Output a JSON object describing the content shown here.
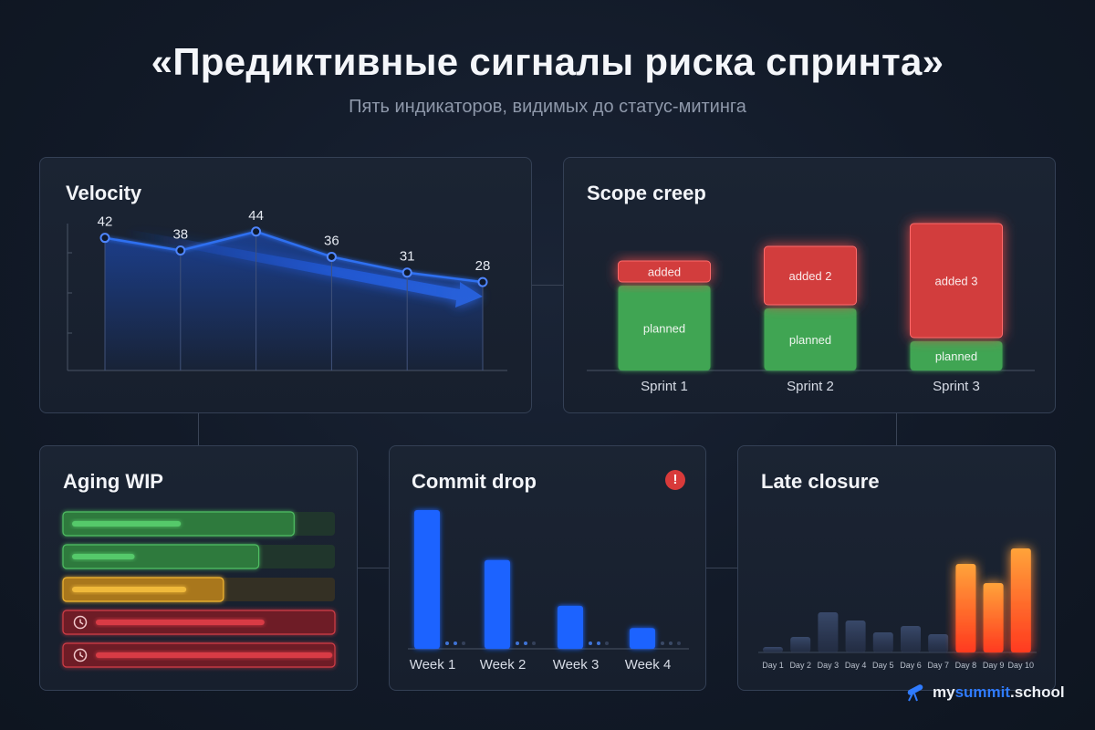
{
  "header": {
    "title": "«Предиктивные сигналы риска спринта»",
    "subtitle": "Пять индикаторов, видимых до статус-митинга"
  },
  "brand": {
    "part1": "my",
    "part2": "summit",
    "part3": ".school"
  },
  "colors": {
    "blue": "#1f6bff",
    "green": "#3fa552",
    "red": "#d23c3c",
    "amber": "#e0a92a",
    "orange": "#ff6a2a",
    "muted_blue": "#3a4a68"
  },
  "chart_data": [
    {
      "id": "velocity",
      "type": "line",
      "title": "Velocity",
      "values": [
        42,
        38,
        44,
        36,
        31,
        28
      ],
      "trend": "down",
      "series_color": "#2f6ff0"
    },
    {
      "id": "scope",
      "type": "bar",
      "title": "Scope creep",
      "stacked": true,
      "categories": [
        "Sprint 1",
        "Sprint 2",
        "Sprint 3"
      ],
      "series": [
        {
          "name": "planned",
          "labels": [
            "planned",
            "planned",
            "planned"
          ],
          "values": [
            93,
            68,
            32
          ],
          "color": "#3fa552"
        },
        {
          "name": "added",
          "labels": [
            "added",
            "added 2",
            "added 3"
          ],
          "values": [
            23,
            64,
            125
          ],
          "color": "#d23c3c"
        }
      ]
    },
    {
      "id": "aging",
      "type": "bar",
      "orientation": "horizontal",
      "title": "Aging WIP",
      "items": [
        {
          "status": "ok",
          "fill": 0.85,
          "inner": 0.4,
          "clock": false
        },
        {
          "status": "ok",
          "fill": 0.72,
          "inner": 0.23,
          "clock": false
        },
        {
          "status": "warning",
          "fill": 0.59,
          "inner": 0.42,
          "clock": false
        },
        {
          "status": "late",
          "fill": 1.0,
          "inner": 0.62,
          "clock": true
        },
        {
          "status": "late",
          "fill": 1.0,
          "inner": 0.87,
          "clock": true
        }
      ]
    },
    {
      "id": "commit",
      "type": "bar",
      "title": "Commit drop",
      "alert": "!",
      "categories": [
        "Week 1",
        "Week 2",
        "Week 3",
        "Week 4"
      ],
      "values": [
        100,
        64,
        31,
        15
      ]
    },
    {
      "id": "late",
      "type": "bar",
      "title": "Late closure",
      "categories": [
        "Day 1",
        "Day 2",
        "Day 3",
        "Day 4",
        "Day 5",
        "Day 6",
        "Day 7",
        "Day 8",
        "Day 9",
        "Day 10"
      ],
      "values": [
        6,
        17,
        44,
        35,
        22,
        29,
        20,
        97,
        76,
        114
      ],
      "highlight_from": 7
    }
  ]
}
